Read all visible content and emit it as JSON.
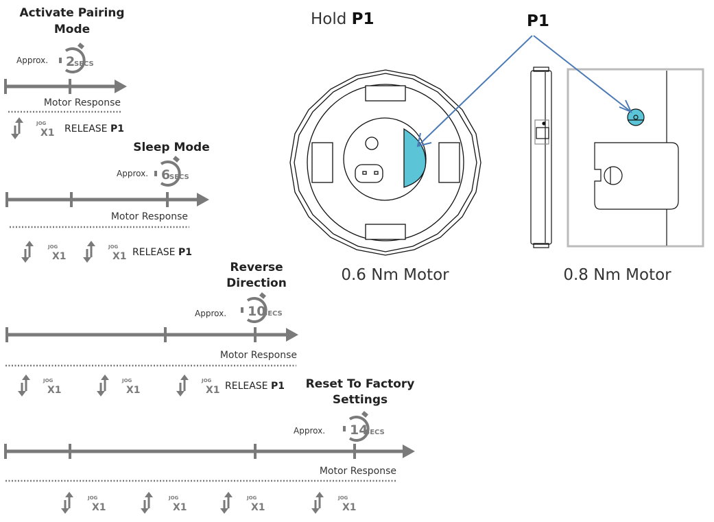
{
  "header": {
    "hold_prefix": "Hold",
    "hold_button": "P1",
    "callout_label": "P1"
  },
  "motors": [
    {
      "label": "0.6 Nm Motor"
    },
    {
      "label": "0.8 Nm Motor"
    }
  ],
  "button_highlight_color": "#5bc4d6",
  "arrow_color": "#4a7ab5",
  "timeline_color": "#7a7a7a",
  "sections": [
    {
      "title": [
        "Activate Pairing",
        "Mode"
      ],
      "approx_label": "Approx.",
      "timer_value": "2",
      "timer_unit": "SECS",
      "motor_response_label": "Motor Response",
      "jog_presses": 1,
      "jog_label": "JOG",
      "jog_count": "X1",
      "release_text": "RELEASE",
      "release_button": "P1"
    },
    {
      "title": [
        "Sleep Mode"
      ],
      "approx_label": "Approx.",
      "timer_value": "6",
      "timer_unit": "SECS",
      "motor_response_label": "Motor Response",
      "jog_presses": 2,
      "jog_label": "JOG",
      "jog_count": "X1",
      "release_text": "RELEASE",
      "release_button": "P1"
    },
    {
      "title": [
        "Reverse",
        "Direction"
      ],
      "approx_label": "Approx.",
      "timer_value": "10",
      "timer_unit": "SECS",
      "motor_response_label": "Motor Response",
      "jog_presses": 3,
      "jog_label": "JOG",
      "jog_count": "X1",
      "release_text": "RELEASE",
      "release_button": "P1"
    },
    {
      "title": [
        "Reset To Factory",
        "Settings"
      ],
      "approx_label": "Approx.",
      "timer_value": "14",
      "timer_unit": "SECS",
      "motor_response_label": "Motor Response",
      "jog_presses": 4,
      "jog_label": "JOG",
      "jog_count": "X1"
    }
  ]
}
